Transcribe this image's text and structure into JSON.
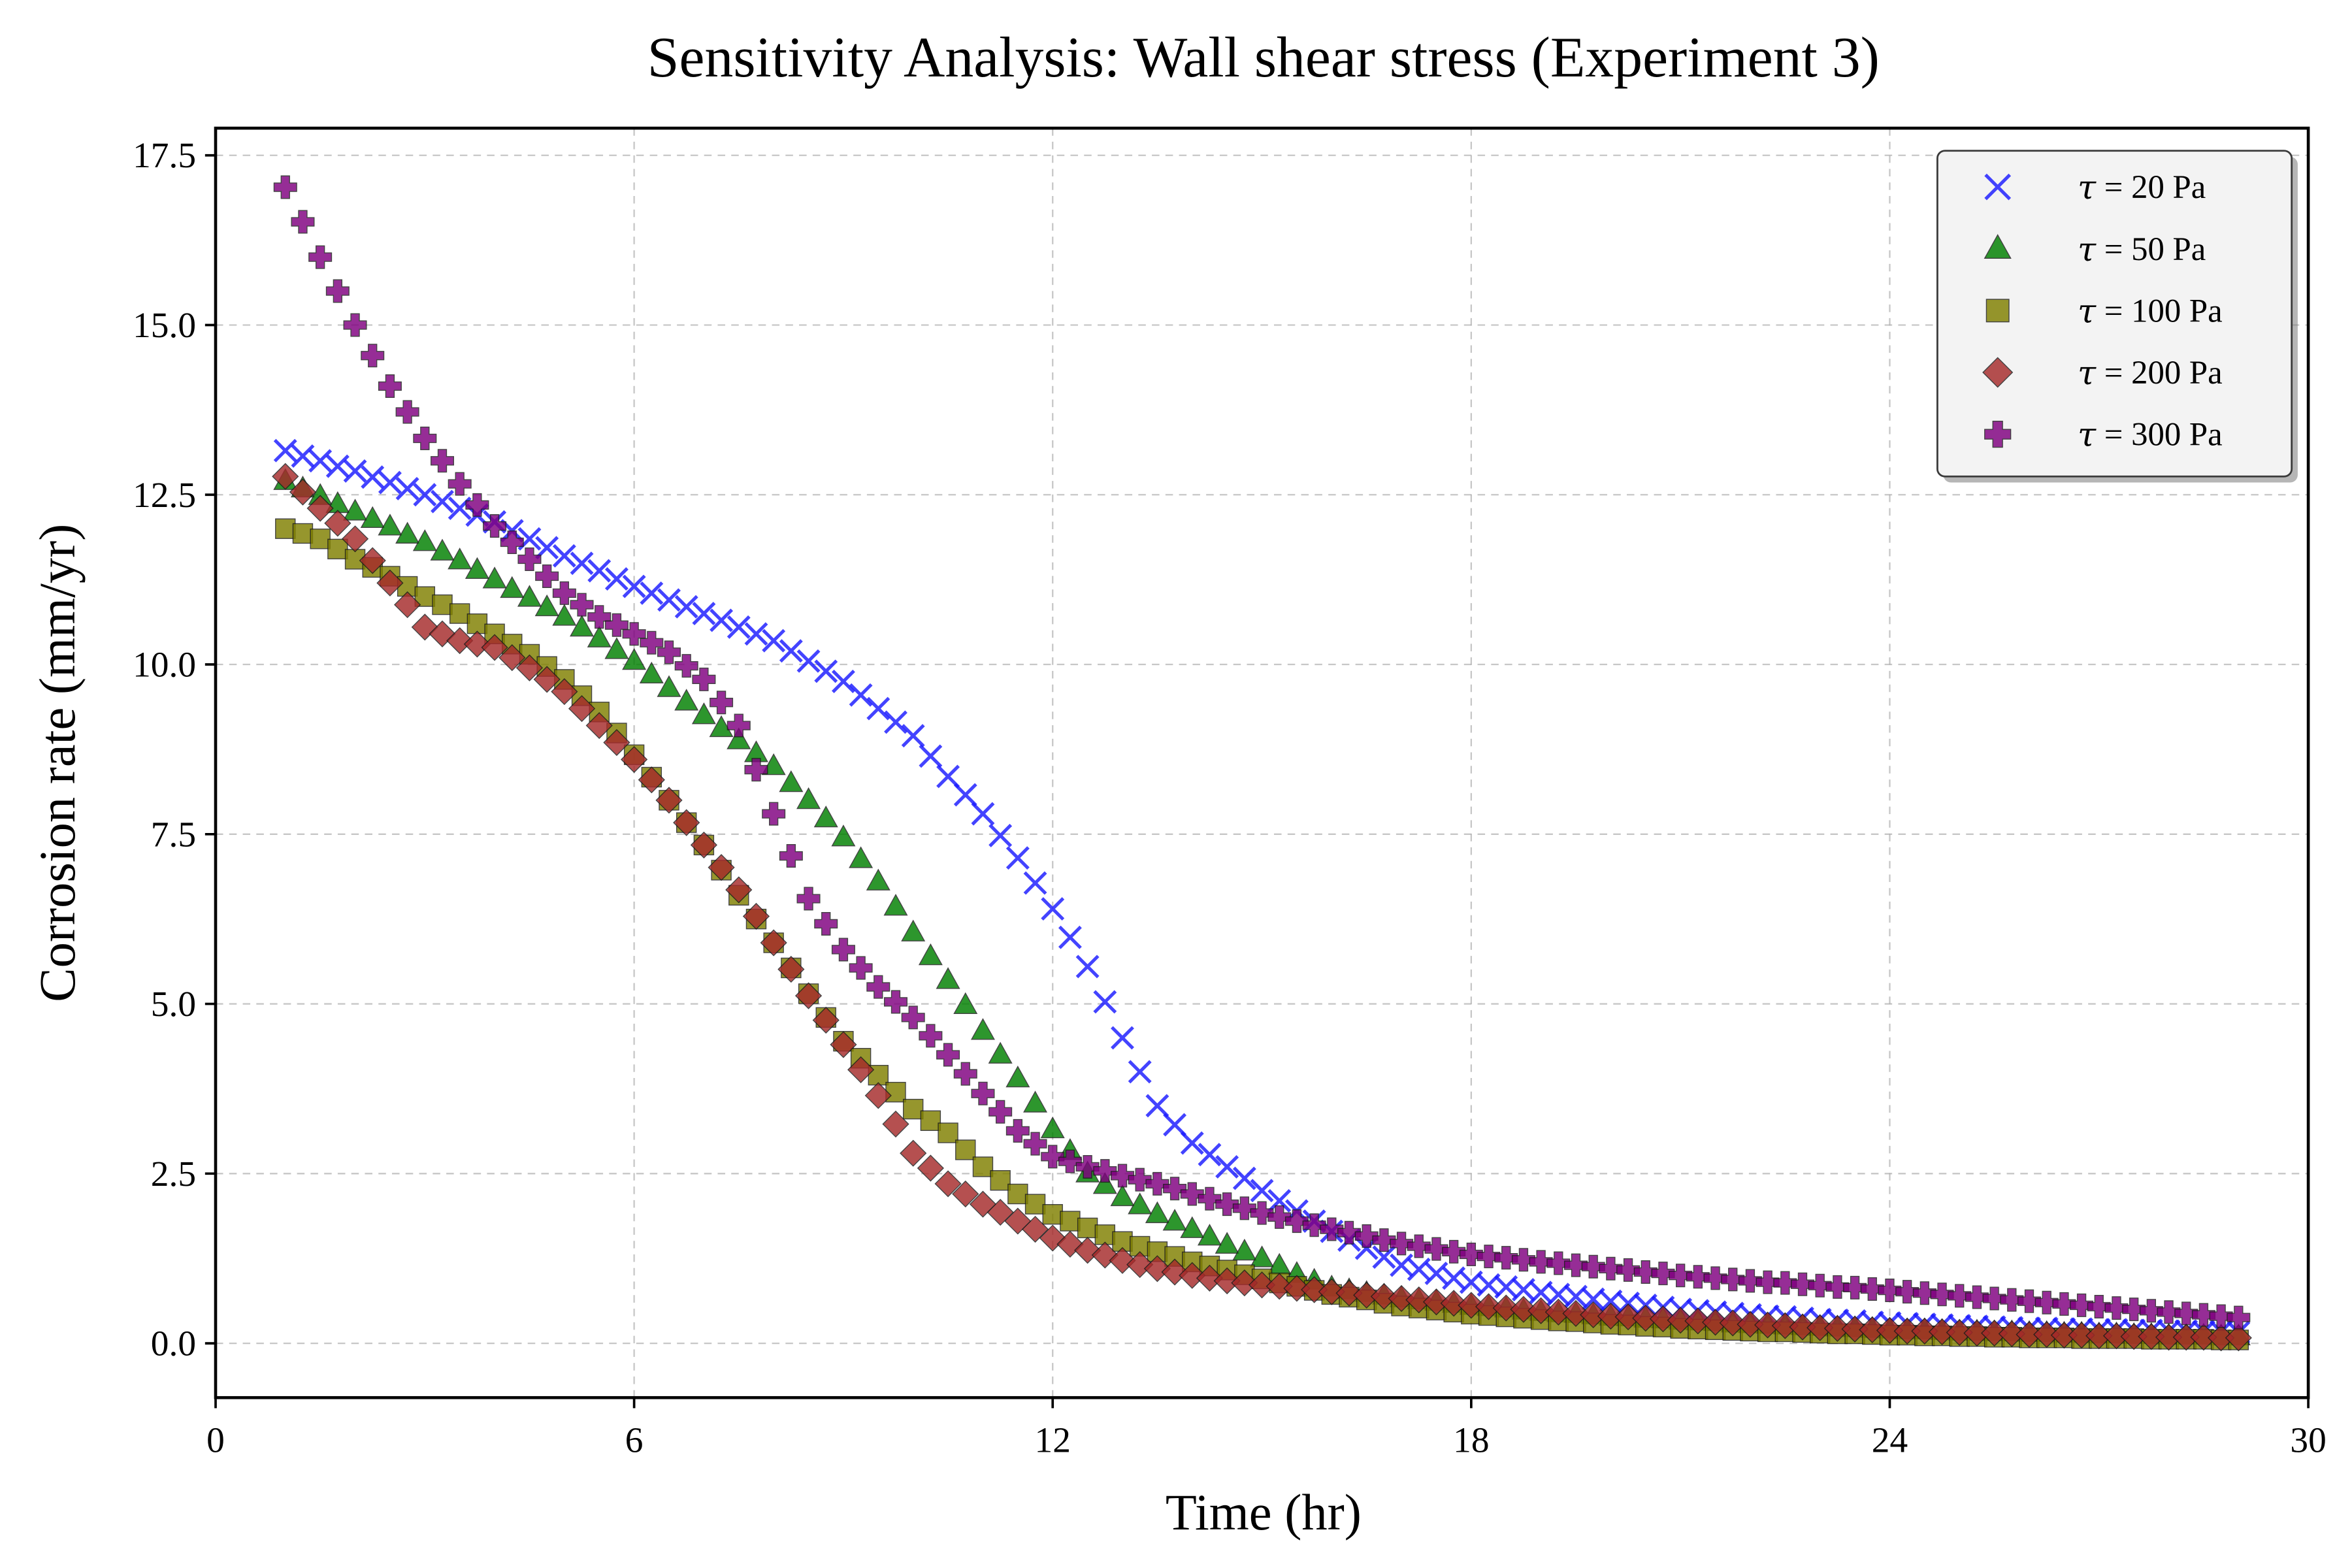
{
  "chart_data": {
    "type": "scatter",
    "title": "Sensitivity Analysis: Wall shear stress (Experiment 3)",
    "xlabel": "Time (hr)",
    "ylabel": "Corrosion rate (mm/yr)",
    "xlim": [
      0,
      30
    ],
    "ylim": [
      -0.8,
      17.9
    ],
    "x_ticks": [
      "0",
      "6",
      "12",
      "18",
      "24",
      "30"
    ],
    "y_ticks": [
      "0.0",
      "2.5",
      "5.0",
      "7.5",
      "10.0",
      "12.5",
      "15.0",
      "17.5"
    ],
    "grid": true,
    "legend_position": "top-right",
    "x": [
      1,
      1.25,
      1.5,
      1.75,
      2,
      2.25,
      2.5,
      2.75,
      3,
      3.25,
      3.5,
      3.75,
      4,
      4.25,
      4.5,
      4.75,
      5,
      5.25,
      5.5,
      5.75,
      6,
      6.25,
      6.5,
      6.75,
      7,
      7.25,
      7.5,
      7.75,
      8,
      8.25,
      8.5,
      8.75,
      9,
      9.25,
      9.5,
      9.75,
      10,
      10.25,
      10.5,
      10.75,
      11,
      11.25,
      11.5,
      11.75,
      12,
      12.25,
      12.5,
      12.75,
      13,
      13.25,
      13.5,
      13.75,
      14,
      14.25,
      14.5,
      14.75,
      15,
      15.25,
      15.5,
      15.75,
      16,
      16.25,
      16.5,
      16.75,
      17,
      17.25,
      17.5,
      17.75,
      18,
      18.25,
      18.5,
      18.75,
      19,
      19.25,
      19.5,
      19.75,
      20,
      20.25,
      20.5,
      20.75,
      21,
      21.25,
      21.5,
      21.75,
      22,
      22.25,
      22.5,
      22.75,
      23,
      23.25,
      23.5,
      23.75,
      24,
      24.25,
      24.5,
      24.75,
      25,
      25.25,
      25.5,
      25.75,
      26,
      26.25,
      26.5,
      26.75,
      27,
      27.25,
      27.5,
      27.75,
      28,
      28.25,
      28.5,
      28.75,
      29
    ],
    "series": [
      {
        "name": "τ = 20 Pa",
        "marker": "x",
        "color": "#1a1aff",
        "values": [
          13.15,
          13.07,
          13.0,
          12.92,
          12.85,
          12.76,
          12.68,
          12.59,
          12.5,
          12.4,
          12.3,
          12.2,
          12.1,
          11.97,
          11.85,
          11.72,
          11.6,
          11.49,
          11.38,
          11.26,
          11.15,
          11.05,
          10.95,
          10.85,
          10.75,
          10.65,
          10.55,
          10.45,
          10.35,
          10.2,
          10.05,
          9.9,
          9.75,
          9.55,
          9.35,
          9.15,
          8.95,
          8.65,
          8.35,
          8.08,
          7.8,
          7.48,
          7.15,
          6.78,
          6.4,
          5.98,
          5.55,
          5.03,
          4.5,
          4.0,
          3.5,
          3.22,
          2.95,
          2.78,
          2.6,
          2.43,
          2.25,
          2.1,
          1.95,
          1.8,
          1.65,
          1.52,
          1.4,
          1.27,
          1.15,
          1.09,
          1.03,
          0.96,
          0.9,
          0.86,
          0.83,
          0.79,
          0.75,
          0.72,
          0.69,
          0.65,
          0.62,
          0.59,
          0.56,
          0.53,
          0.5,
          0.48,
          0.46,
          0.44,
          0.42,
          0.4,
          0.39,
          0.37,
          0.35,
          0.34,
          0.33,
          0.31,
          0.3,
          0.29,
          0.28,
          0.27,
          0.26,
          0.25,
          0.24,
          0.23,
          0.22,
          0.22,
          0.21,
          0.21,
          0.2,
          0.2,
          0.19,
          0.19,
          0.18,
          0.18,
          0.17,
          0.17,
          0.16
        ]
      },
      {
        "name": "τ = 50 Pa",
        "marker": "triangle",
        "color": "#008000",
        "values": [
          12.7,
          12.59,
          12.48,
          12.36,
          12.25,
          12.14,
          12.03,
          11.91,
          11.8,
          11.66,
          11.53,
          11.39,
          11.25,
          11.11,
          10.98,
          10.84,
          10.7,
          10.54,
          10.38,
          10.21,
          10.05,
          9.85,
          9.65,
          9.45,
          9.25,
          9.06,
          8.88,
          8.69,
          8.5,
          8.25,
          8.0,
          7.73,
          7.45,
          7.13,
          6.8,
          6.43,
          6.05,
          5.7,
          5.35,
          4.98,
          4.6,
          4.25,
          3.9,
          3.53,
          3.15,
          2.83,
          2.5,
          2.33,
          2.15,
          2.03,
          1.9,
          1.79,
          1.68,
          1.57,
          1.45,
          1.35,
          1.25,
          1.14,
          1.02,
          0.92,
          0.82,
          0.78,
          0.74,
          0.7,
          0.66,
          0.63,
          0.61,
          0.58,
          0.55,
          0.53,
          0.51,
          0.48,
          0.46,
          0.44,
          0.43,
          0.41,
          0.39,
          0.38,
          0.36,
          0.35,
          0.33,
          0.32,
          0.31,
          0.29,
          0.28,
          0.27,
          0.26,
          0.25,
          0.24,
          0.23,
          0.22,
          0.21,
          0.2,
          0.19,
          0.19,
          0.18,
          0.17,
          0.17,
          0.16,
          0.16,
          0.15,
          0.15,
          0.14,
          0.14,
          0.13,
          0.13,
          0.12,
          0.12,
          0.11,
          0.11,
          0.11,
          0.1,
          0.1
        ]
      },
      {
        "name": "τ = 100 Pa",
        "marker": "square",
        "color": "#808000",
        "values": [
          12.0,
          11.93,
          11.85,
          11.7,
          11.55,
          11.43,
          11.3,
          11.15,
          11.0,
          10.88,
          10.75,
          10.6,
          10.45,
          10.3,
          10.15,
          9.97,
          9.78,
          9.54,
          9.3,
          8.99,
          8.67,
          8.34,
          8.0,
          7.67,
          7.34,
          6.97,
          6.6,
          6.25,
          5.9,
          5.53,
          5.15,
          4.8,
          4.45,
          4.2,
          3.95,
          3.7,
          3.45,
          3.28,
          3.1,
          2.85,
          2.6,
          2.4,
          2.2,
          2.05,
          1.9,
          1.8,
          1.7,
          1.6,
          1.5,
          1.43,
          1.35,
          1.28,
          1.2,
          1.14,
          1.08,
          1.01,
          0.95,
          0.89,
          0.84,
          0.78,
          0.72,
          0.68,
          0.64,
          0.59,
          0.55,
          0.52,
          0.49,
          0.46,
          0.43,
          0.41,
          0.39,
          0.37,
          0.35,
          0.33,
          0.32,
          0.3,
          0.28,
          0.27,
          0.25,
          0.24,
          0.22,
          0.21,
          0.2,
          0.19,
          0.18,
          0.17,
          0.17,
          0.16,
          0.15,
          0.14,
          0.14,
          0.13,
          0.12,
          0.12,
          0.11,
          0.11,
          0.1,
          0.1,
          0.09,
          0.09,
          0.08,
          0.08,
          0.08,
          0.07,
          0.07,
          0.07,
          0.07,
          0.06,
          0.06,
          0.06,
          0.06,
          0.05,
          0.05
        ]
      },
      {
        "name": "τ = 200 Pa",
        "marker": "diamond",
        "color": "#a52a2a",
        "values": [
          12.77,
          12.54,
          12.3,
          12.08,
          11.85,
          11.53,
          11.2,
          10.88,
          10.55,
          10.45,
          10.35,
          10.3,
          10.25,
          10.1,
          9.95,
          9.78,
          9.6,
          9.35,
          9.1,
          8.85,
          8.6,
          8.3,
          8.0,
          7.67,
          7.34,
          7.01,
          6.68,
          6.29,
          5.9,
          5.51,
          5.12,
          4.76,
          4.4,
          4.03,
          3.65,
          3.23,
          2.8,
          2.58,
          2.35,
          2.2,
          2.05,
          1.93,
          1.8,
          1.68,
          1.55,
          1.46,
          1.37,
          1.3,
          1.22,
          1.16,
          1.1,
          1.05,
          1.0,
          0.96,
          0.92,
          0.89,
          0.86,
          0.84,
          0.81,
          0.79,
          0.76,
          0.74,
          0.71,
          0.69,
          0.66,
          0.64,
          0.61,
          0.59,
          0.56,
          0.54,
          0.52,
          0.5,
          0.48,
          0.46,
          0.44,
          0.42,
          0.4,
          0.39,
          0.37,
          0.36,
          0.34,
          0.33,
          0.31,
          0.3,
          0.28,
          0.27,
          0.26,
          0.24,
          0.23,
          0.22,
          0.21,
          0.2,
          0.19,
          0.18,
          0.18,
          0.17,
          0.16,
          0.15,
          0.15,
          0.14,
          0.13,
          0.13,
          0.12,
          0.12,
          0.11,
          0.11,
          0.1,
          0.1,
          0.09,
          0.09,
          0.09,
          0.08,
          0.08
        ]
      },
      {
        "name": "τ = 300 Pa",
        "marker": "plus",
        "color": "#800080",
        "values": [
          17.03,
          16.52,
          16.0,
          15.5,
          15.0,
          14.55,
          14.1,
          13.72,
          13.33,
          13.0,
          12.66,
          12.35,
          12.04,
          11.8,
          11.55,
          11.3,
          11.05,
          10.88,
          10.7,
          10.58,
          10.45,
          10.32,
          10.18,
          9.98,
          9.78,
          9.44,
          9.1,
          8.45,
          7.8,
          7.18,
          6.55,
          6.18,
          5.8,
          5.53,
          5.25,
          5.03,
          4.8,
          4.53,
          4.25,
          3.97,
          3.68,
          3.41,
          3.13,
          2.94,
          2.75,
          2.68,
          2.6,
          2.54,
          2.47,
          2.41,
          2.35,
          2.28,
          2.2,
          2.13,
          2.05,
          1.99,
          1.92,
          1.86,
          1.8,
          1.74,
          1.68,
          1.63,
          1.58,
          1.52,
          1.47,
          1.43,
          1.39,
          1.35,
          1.31,
          1.28,
          1.26,
          1.23,
          1.2,
          1.18,
          1.15,
          1.13,
          1.1,
          1.08,
          1.05,
          1.03,
          1.0,
          0.98,
          0.96,
          0.94,
          0.92,
          0.9,
          0.89,
          0.87,
          0.85,
          0.83,
          0.82,
          0.8,
          0.78,
          0.76,
          0.74,
          0.72,
          0.7,
          0.68,
          0.66,
          0.64,
          0.62,
          0.6,
          0.58,
          0.56,
          0.54,
          0.52,
          0.5,
          0.48,
          0.46,
          0.44,
          0.42,
          0.4,
          0.38
        ]
      }
    ]
  }
}
